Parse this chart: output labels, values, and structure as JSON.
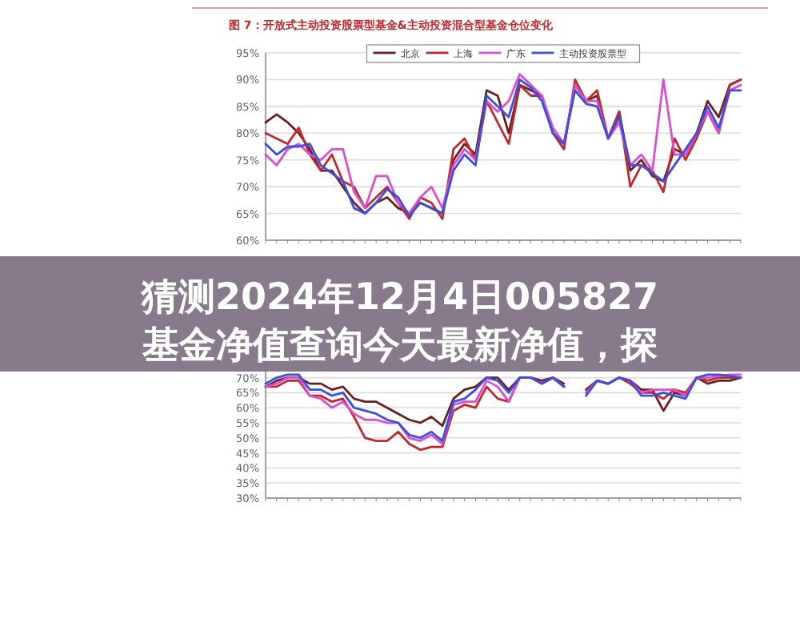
{
  "chart_data": [
    {
      "type": "line",
      "title": "图 7：开放式主动投资股票型基金&主动投资混合型基金仓位变化",
      "annotations": [
        "猜测2024年12月4日005827基金净值查询今天最新净值，探"
      ],
      "legend": "top",
      "grid": "y",
      "categories": [
        null,
        null,
        null,
        null,
        null,
        null,
        null,
        null,
        null,
        null,
        null,
        null,
        null,
        null,
        null,
        null,
        null,
        null,
        null,
        null,
        null,
        null,
        null,
        null,
        null,
        null,
        null,
        null,
        null,
        null,
        null,
        null,
        null,
        null,
        null,
        null,
        null,
        null,
        null,
        null,
        null,
        null,
        null,
        null
      ],
      "ylim": [
        60,
        95
      ],
      "yticks": [
        {
          "value": 60,
          "label": "60%"
        },
        {
          "value": 65,
          "label": "65%"
        },
        {
          "value": 70,
          "label": "70%"
        },
        {
          "value": 75,
          "label": "75%"
        },
        {
          "value": 80,
          "label": "80%"
        },
        {
          "value": 85,
          "label": "85%"
        },
        {
          "value": 90,
          "label": "90%"
        },
        {
          "value": 95,
          "label": "95%"
        }
      ],
      "series": [
        {
          "name": "北京",
          "color": "#6b1f1f",
          "values": [
            82,
            83.5,
            82,
            80,
            77,
            73,
            73,
            70,
            67,
            65,
            67,
            68,
            66,
            65,
            67,
            66,
            65,
            75,
            78,
            76,
            88,
            87,
            80,
            89,
            88,
            87,
            80,
            78,
            89,
            86,
            87,
            79,
            84,
            73,
            75,
            72,
            71,
            77,
            76,
            80,
            86,
            83,
            89,
            90
          ]
        },
        {
          "name": "上海",
          "color": "#c0282d",
          "values": [
            80,
            79,
            78,
            81,
            76,
            73,
            76,
            71,
            70,
            66,
            68,
            70,
            67,
            64,
            68,
            67,
            64,
            77,
            79,
            75,
            86,
            82,
            78,
            89,
            87,
            87,
            80,
            77,
            90,
            86,
            88,
            79,
            84,
            70,
            74,
            73,
            69,
            79,
            75,
            79,
            84,
            80,
            89,
            90
          ]
        },
        {
          "name": "广东",
          "color": "#d94fd0",
          "values": [
            76,
            74,
            77,
            78,
            76,
            75,
            77,
            77,
            69,
            66,
            72,
            72,
            67,
            65,
            68,
            70,
            66,
            74,
            77,
            75,
            86,
            84,
            86,
            91,
            89,
            87,
            81,
            78,
            89,
            86,
            86,
            79,
            82,
            74,
            76,
            73,
            90,
            76,
            76,
            80,
            84,
            80,
            88,
            89
          ]
        },
        {
          "name": "主动投资股票型",
          "color": "#3a4fe0",
          "values": [
            78,
            76,
            77.5,
            77.5,
            78,
            74,
            72.5,
            71,
            66,
            65,
            67,
            69.5,
            68,
            64.5,
            67,
            66,
            65,
            73,
            76,
            74,
            87,
            85,
            83,
            90,
            88.5,
            86,
            80,
            78,
            88,
            85.5,
            85,
            79,
            83,
            74,
            74,
            72.5,
            71,
            74,
            77,
            80,
            85,
            81,
            88,
            88
          ]
        }
      ]
    },
    {
      "type": "line",
      "grid": "y",
      "categories": [
        null,
        null,
        null,
        null,
        null,
        null,
        null,
        null,
        null,
        null,
        null,
        null,
        null,
        null,
        null,
        null,
        null,
        null,
        null,
        null,
        null,
        null,
        null,
        null,
        null,
        null,
        null,
        null,
        null,
        null,
        null,
        null,
        null,
        null,
        null,
        null,
        null,
        null,
        null,
        null,
        null,
        null,
        null,
        null
      ],
      "ylim": [
        30,
        80
      ],
      "yticks": [
        {
          "value": 30,
          "label": "30%"
        },
        {
          "value": 35,
          "label": "35%"
        },
        {
          "value": 40,
          "label": "40%"
        },
        {
          "value": 45,
          "label": "45%"
        },
        {
          "value": 50,
          "label": "50%"
        },
        {
          "value": 55,
          "label": "55%"
        },
        {
          "value": 60,
          "label": "60%"
        },
        {
          "value": 65,
          "label": "65%"
        },
        {
          "value": 70,
          "label": "70%"
        }
      ],
      "series": [
        {
          "color": "#6b1f1f",
          "values": [
            67,
            69,
            70,
            70,
            68,
            68,
            66,
            67,
            63,
            62,
            62,
            60,
            58,
            56,
            55,
            57,
            54,
            63,
            66,
            67,
            70,
            70,
            66,
            70,
            70,
            69,
            70,
            68,
            null,
            66,
            69,
            68,
            70,
            69,
            66,
            66,
            59,
            65,
            64,
            70,
            68,
            69,
            69,
            70
          ]
        },
        {
          "color": "#c0282d",
          "values": [
            67,
            67,
            69,
            69,
            64,
            64,
            62,
            63,
            57,
            50,
            49,
            49,
            52,
            48,
            46,
            47,
            47,
            59,
            61,
            60,
            67,
            63,
            62,
            70,
            70,
            68,
            70,
            67,
            null,
            65,
            69,
            68,
            70,
            68,
            65,
            65,
            63,
            66,
            65,
            70,
            69,
            70,
            70,
            70
          ]
        },
        {
          "color": "#d94fd0",
          "values": [
            67,
            68,
            70,
            70,
            64,
            63,
            60,
            62,
            58,
            56,
            56,
            55,
            55,
            50,
            49,
            51,
            48,
            61,
            62,
            62,
            69,
            67,
            62,
            70,
            70,
            68,
            70,
            67,
            null,
            65,
            69,
            68,
            70,
            69,
            65,
            66,
            66,
            66,
            64,
            70,
            70,
            70.5,
            71,
            71
          ]
        },
        {
          "color": "#3a4fe0",
          "values": [
            68,
            70,
            71,
            71,
            66,
            66,
            64,
            65,
            60,
            59,
            58,
            56,
            55,
            51,
            50,
            52,
            49,
            62,
            63,
            66,
            70,
            69,
            65,
            70,
            70,
            68,
            70,
            67,
            null,
            64,
            69,
            68,
            70,
            69,
            64,
            64,
            65,
            64,
            63,
            70,
            71,
            71,
            70.5,
            70
          ]
        }
      ]
    }
  ]
}
